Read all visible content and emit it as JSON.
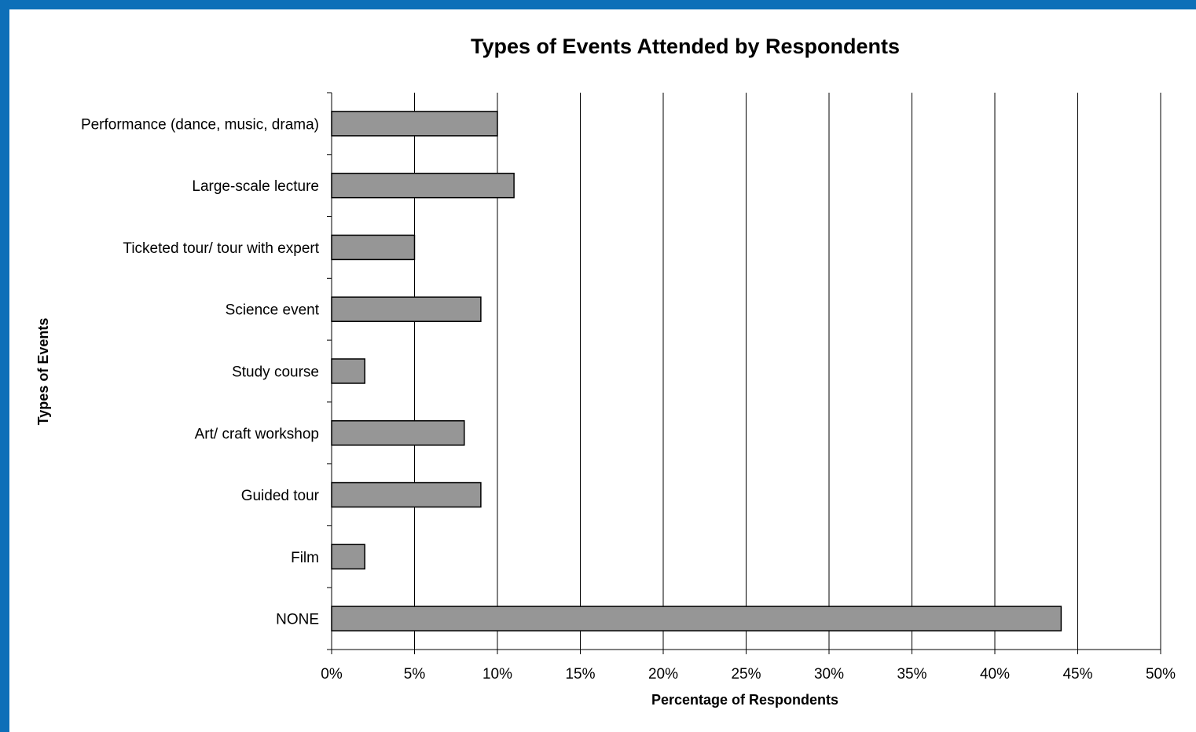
{
  "colors": {
    "frame": "#0d6fb8",
    "bar_fill": "#969696",
    "bar_stroke": "#000000",
    "gridline": "#000000",
    "background": "#ffffff"
  },
  "chart_data": {
    "type": "bar",
    "orientation": "horizontal",
    "title": "Types of Events Attended by Respondents",
    "xlabel": "Percentage of Respondents",
    "ylabel": "Types of Events",
    "xlim": [
      0,
      50
    ],
    "x_ticks": [
      "0%",
      "5%",
      "10%",
      "15%",
      "20%",
      "25%",
      "30%",
      "35%",
      "40%",
      "45%",
      "50%"
    ],
    "grid": "vertical",
    "legend": "none",
    "categories": [
      "Performance (dance, music, drama)",
      "Large-scale lecture",
      "Ticketed tour/ tour with expert",
      "Science event",
      "Study course",
      "Art/ craft workshop",
      "Guided tour",
      "Film",
      "NONE"
    ],
    "values": [
      10,
      11,
      5,
      9,
      2,
      8,
      9,
      2,
      44
    ]
  }
}
